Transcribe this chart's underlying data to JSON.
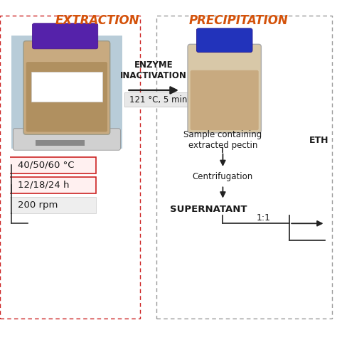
{
  "title_left": "EXTRACTION",
  "title_right": "PRECIPITATION",
  "title_color": "#D4520A",
  "arrow_label": "ENZYME\nINACTIVATION",
  "arrow_sublabel": "121 °C, 5 min",
  "arrow_sublabel_bg": "#e8e8e8",
  "label_sample": "Sample containing\nextracted pectin",
  "label_centrifugation": "Centrifugation",
  "label_supernatant": "SUPERNATANT",
  "label_ratio": "1:1",
  "label_eth": "ETH",
  "box1_label": "40/50/60 °C",
  "box2_label": "12/18/24 h",
  "box3_label": "200 rpm",
  "box1_color": "#fff0f0",
  "box1_border": "#cc2222",
  "box2_color": "#fff0f0",
  "box2_border": "#cc2222",
  "box3_color": "#eeeeee",
  "box3_border": "#cccccc",
  "left_section_border": "#cc2222",
  "right_section_border": "#999999",
  "bg_color": "#ffffff",
  "text_color": "#1a1a1a",
  "arrow_color": "#222222",
  "fig_width": 4.74,
  "fig_height": 4.74,
  "dpi": 100
}
